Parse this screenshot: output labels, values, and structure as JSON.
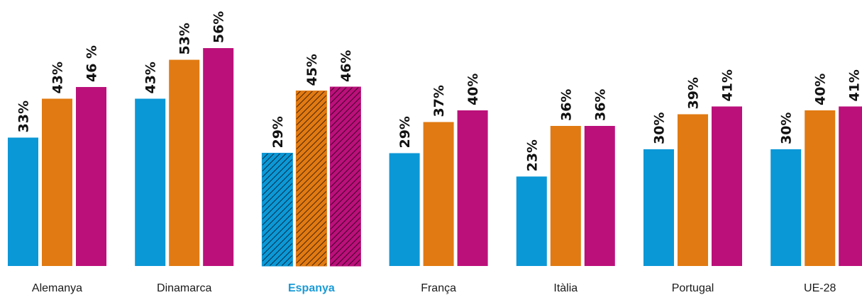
{
  "chart_data": {
    "type": "bar",
    "categories": [
      "Alemanya",
      "Dinamarca",
      "Espanya",
      "França",
      "Itàlia",
      "Portugal",
      "UE-28"
    ],
    "highlight_category": "Espanya",
    "highlight_style": "hatched",
    "series": [
      {
        "color": "#0b98d6",
        "values": [
          33,
          43,
          29,
          29,
          23,
          30,
          30
        ],
        "labels": [
          "33%",
          "43%",
          "29%",
          "29%",
          "23%",
          "30%",
          "30%"
        ]
      },
      {
        "color": "#e17a12",
        "values": [
          43,
          53,
          45,
          37,
          36,
          39,
          40
        ],
        "labels": [
          "43%",
          "53%",
          "45%",
          "37%",
          "36%",
          "39%",
          "40%"
        ]
      },
      {
        "color": "#bb107a",
        "values": [
          46,
          56,
          46,
          40,
          36,
          41,
          41
        ],
        "labels": [
          "46 %",
          "56%",
          "46%",
          "40%",
          "36%",
          "41%",
          "41%"
        ]
      }
    ],
    "ylim": [
      0,
      60
    ],
    "grid": false,
    "legend": "none",
    "title": "",
    "xlabel": "",
    "ylabel": ""
  }
}
